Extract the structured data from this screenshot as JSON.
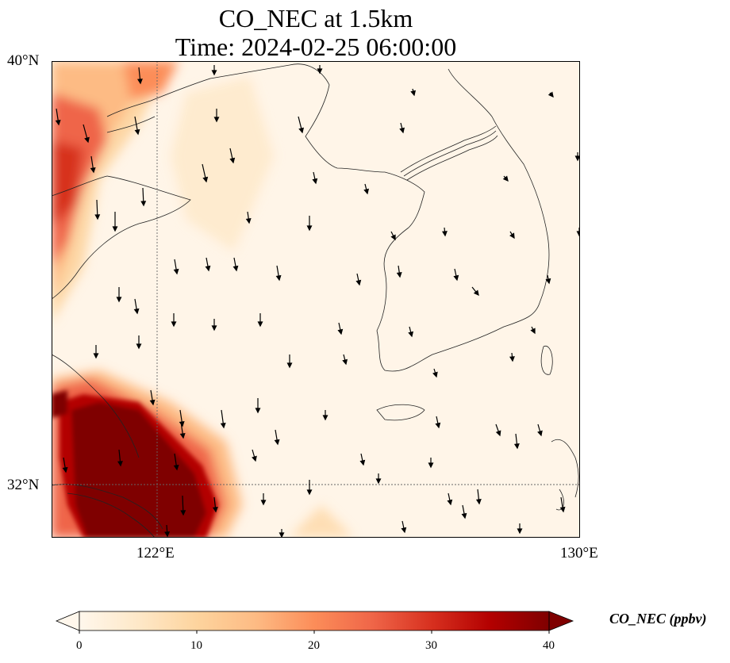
{
  "title": {
    "line1": "CO_NEC at 1.5km",
    "line2": "Time: 2024-02-25 06:00:00"
  },
  "map": {
    "extent": {
      "lon": [
        120,
        130
      ],
      "lat": [
        31,
        40
      ]
    },
    "lat_ticks": [
      {
        "value": 40,
        "label": "40°N"
      },
      {
        "value": 32,
        "label": "32°N"
      }
    ],
    "lon_ticks": [
      {
        "value": 122,
        "label": "122°E"
      },
      {
        "value": 130,
        "label": "130°E"
      }
    ],
    "gridlines": "dotted",
    "wind_direction": "southward (northerly wind)"
  },
  "colorbar": {
    "label": "CO_NEC (ppbv)",
    "colormap": "OrRd",
    "range": [
      0,
      40
    ],
    "extend": "both",
    "ticks": [
      "0",
      "10",
      "20",
      "30",
      "40"
    ],
    "colors": [
      "#fff7ec",
      "#fee8c8",
      "#fdd49e",
      "#fdbb84",
      "#fc8d59",
      "#ef6548",
      "#d7301f",
      "#b30000",
      "#7f0000"
    ]
  }
}
